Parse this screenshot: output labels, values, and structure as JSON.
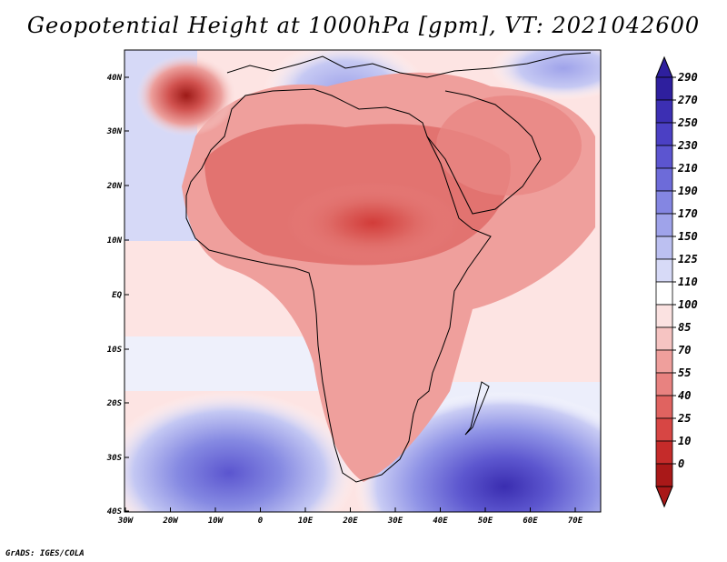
{
  "title": "Geopotential Height at 1000hPa [gpm], VT: 2021042600",
  "credit": "GrADS: IGES/COLA",
  "map": {
    "lon_labels": [
      "30W",
      "20W",
      "10W",
      "0",
      "10E",
      "20E",
      "30E",
      "40E",
      "50E",
      "60E",
      "70E"
    ],
    "lat_labels": [
      "40N",
      "30N",
      "20N",
      "10N",
      "EQ",
      "10S",
      "20S",
      "30S",
      "40S"
    ]
  },
  "colorbar": {
    "labels": [
      "290",
      "270",
      "250",
      "230",
      "210",
      "190",
      "170",
      "150",
      "125",
      "110",
      "100",
      "85",
      "70",
      "55",
      "40",
      "25",
      "10",
      "0"
    ],
    "colors": [
      "#2e1f9e",
      "#3c2fb3",
      "#4b40c4",
      "#5c55d0",
      "#6d6bd9",
      "#8486e2",
      "#9fa3ea",
      "#bcc0f1",
      "#d7daf7",
      "#ffffff",
      "#fbe2e1",
      "#f6c4c2",
      "#ef9f9c",
      "#e88280",
      "#e06360",
      "#d74644",
      "#c52b2a",
      "#a91818"
    ]
  },
  "colors": {
    "ocean_low": "#fde9e8",
    "land_high": "#e07874",
    "coastline": "#000000"
  }
}
